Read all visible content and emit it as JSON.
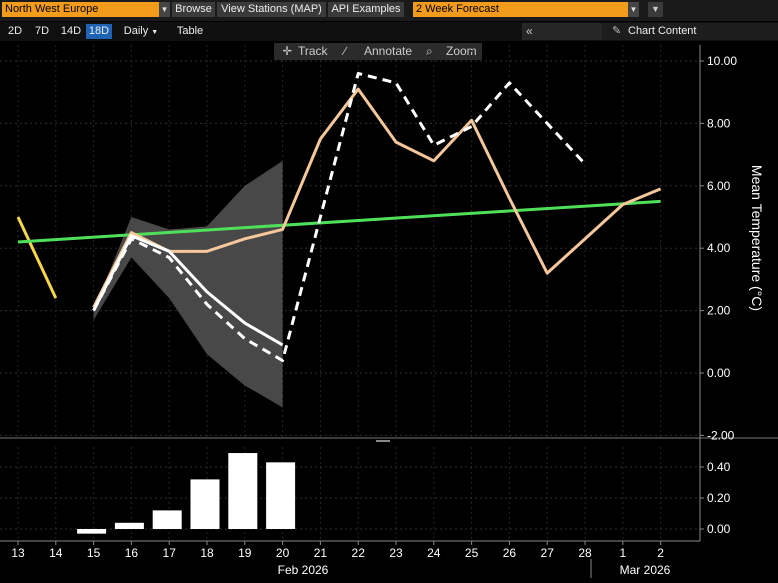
{
  "toolbar": {
    "region": "North West Europe",
    "browse": "Browse",
    "view_stations": "View Stations (MAP)",
    "api_examples": "API Examples",
    "forecast": "2 Week Forecast",
    "dropdown_icon": "chevron-down-icon",
    "filter_icon": "funnel-icon"
  },
  "periods": [
    "2D",
    "7D",
    "14D",
    "18D"
  ],
  "active_period": "18D",
  "frequency": "Daily",
  "table_label": "Table",
  "chart_content": "Chart Content",
  "chart_tools": {
    "track": "Track",
    "annotate": "Annotate",
    "zoom": "Zoom"
  },
  "colors": {
    "background": "#000000",
    "accent": "#f39c1b",
    "active_tab": "#1f63b5",
    "normal_line": "#4fe05a",
    "forecast_line": "#f5c79a",
    "white_line": "#ffffff",
    "observed_line": "#f5d64a",
    "band": "#555555"
  },
  "chart_data": [
    {
      "type": "line",
      "ylabel": "Mean Temperature (°C)",
      "ylim": [
        -2.2,
        10.5
      ],
      "yticks": [
        "10.00",
        "8.00",
        "6.00",
        "4.00",
        "2.00",
        "0.00",
        "-2.00"
      ],
      "grid": true,
      "x_categories": [
        "13",
        "14",
        "15",
        "16",
        "17",
        "18",
        "19",
        "20",
        "21",
        "22",
        "23",
        "24",
        "25",
        "26",
        "27",
        "28",
        "1",
        "2"
      ],
      "x_groups": [
        "Feb 2026",
        "Mar 2026"
      ],
      "series": [
        {
          "style": "solid",
          "color": "#f5d64a",
          "x": [
            13,
            14
          ],
          "y": [
            5.0,
            2.4
          ]
        },
        {
          "style": "solid",
          "color": "#4fe05a",
          "x": [
            13,
            2
          ],
          "y": [
            4.2,
            5.5
          ]
        },
        {
          "style": "solid",
          "color": "#f5c79a",
          "x": [
            15,
            16,
            17,
            18,
            19,
            20,
            21,
            22,
            23,
            24,
            25,
            26,
            27,
            28,
            1,
            2
          ],
          "y": [
            2.1,
            4.5,
            3.9,
            3.9,
            4.3,
            4.6,
            7.5,
            9.1,
            7.4,
            6.8,
            8.1,
            5.6,
            3.2,
            4.3,
            5.4,
            5.9
          ]
        },
        {
          "style": "solid",
          "color": "#ffffff",
          "x": [
            15,
            16,
            17,
            18,
            19,
            20
          ],
          "y": [
            2.0,
            4.4,
            3.9,
            2.6,
            1.6,
            0.9
          ]
        },
        {
          "style": "dashed",
          "color": "#ffffff",
          "x": [
            15,
            16,
            17,
            18,
            19,
            20,
            21,
            22,
            23,
            24,
            25,
            26,
            27,
            28
          ],
          "y": [
            2.0,
            4.3,
            3.7,
            2.2,
            1.1,
            0.4,
            5.0,
            9.6,
            9.3,
            7.3,
            7.9,
            9.3,
            8.0,
            6.7
          ]
        }
      ],
      "band": {
        "x": [
          15,
          16,
          17,
          18,
          19,
          20
        ],
        "upper": [
          2.0,
          5.0,
          4.6,
          4.7,
          6.0,
          6.8
        ],
        "lower": [
          1.7,
          3.7,
          2.4,
          0.6,
          -0.4,
          -1.1
        ]
      }
    },
    {
      "type": "bar",
      "ylim": [
        -0.05,
        0.55
      ],
      "yticks": [
        "0.40",
        "0.20",
        "0.00"
      ],
      "x": [
        15,
        16,
        17,
        18,
        19,
        20
      ],
      "values": [
        -0.03,
        0.04,
        0.12,
        0.32,
        0.49,
        0.43
      ]
    }
  ]
}
